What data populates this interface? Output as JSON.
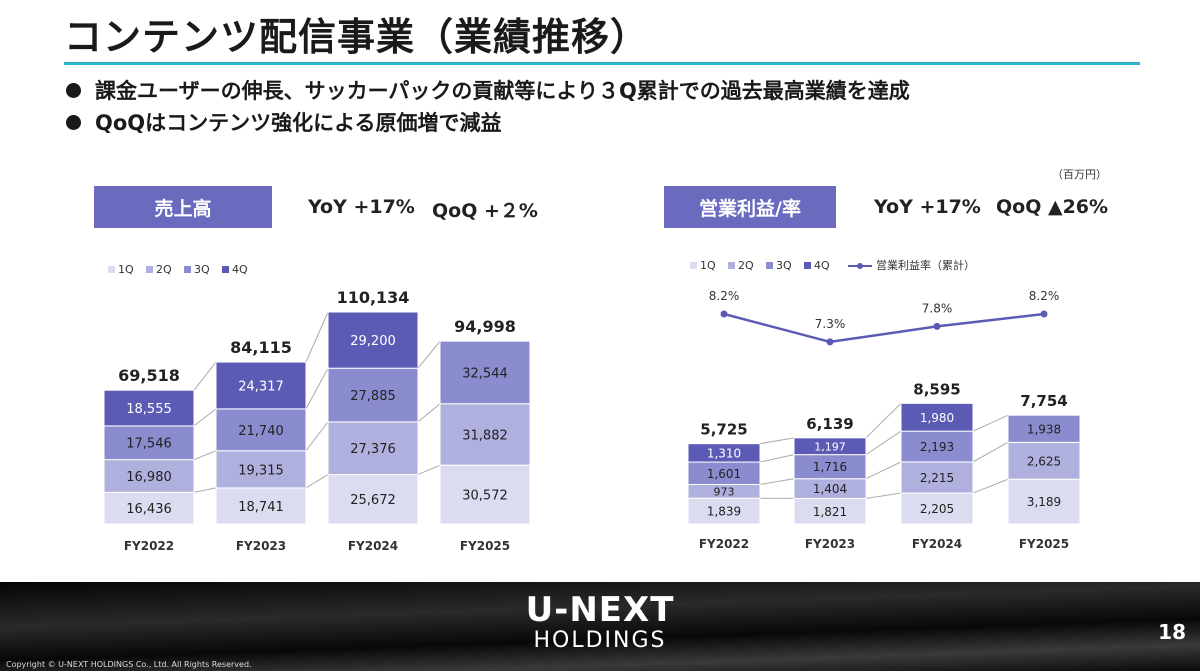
{
  "title": "コンテンツ配信事業（業績推移）",
  "bullets": [
    "課金ユーザーの伸長、サッカーパックの貢献等により３Q累計での過去最高業績を達成",
    "QoQはコンテンツ強化による原価増で減益"
  ],
  "unit_note": "（百万円）",
  "sales": {
    "label": "売上高",
    "yoy": "YoY +17%",
    "qoq": "QoQ +２%"
  },
  "profit": {
    "label": "営業利益/率",
    "yoy": "YoY +17%",
    "qoq": "QoQ ▲26%"
  },
  "colors": {
    "q1": "#dcdcf1",
    "q2": "#b0b0df",
    "q3": "#8b8bd0",
    "q4": "#5b5bb5",
    "rate_line": "#5b5bb5",
    "label_box": "#6a6bbf",
    "rule": "#2bb6c8"
  },
  "chart_data": [
    {
      "type": "bar",
      "stacked": true,
      "categories": [
        "FY2022",
        "FY2023",
        "FY2024",
        "FY2025"
      ],
      "series": [
        {
          "name": "1Q",
          "values": [
            16436,
            18741,
            25672,
            30572
          ]
        },
        {
          "name": "2Q",
          "values": [
            16980,
            19315,
            27376,
            31882
          ]
        },
        {
          "name": "3Q",
          "values": [
            17546,
            21740,
            27885,
            32544
          ]
        },
        {
          "name": "4Q",
          "values": [
            18555,
            24317,
            29200,
            null
          ]
        }
      ],
      "totals": [
        69518,
        84115,
        110134,
        94998
      ],
      "legend_position": "top-left",
      "grid": false
    },
    {
      "type": "bar",
      "stacked": true,
      "categories": [
        "FY2022",
        "FY2023",
        "FY2024",
        "FY2025"
      ],
      "series": [
        {
          "name": "1Q",
          "values": [
            1839,
            1821,
            2205,
            3189
          ]
        },
        {
          "name": "2Q",
          "values": [
            973,
            1404,
            2215,
            2625
          ]
        },
        {
          "name": "3Q",
          "values": [
            1601,
            1716,
            2193,
            1938
          ]
        },
        {
          "name": "4Q",
          "values": [
            1310,
            1197,
            1980,
            null
          ]
        }
      ],
      "totals": [
        5725,
        6139,
        8595,
        7754
      ],
      "line": {
        "name": "営業利益率（累計）",
        "values": [
          8.2,
          7.3,
          7.8,
          8.2
        ],
        "labels": [
          "8.2%",
          "7.3%",
          "7.8%",
          "8.2%"
        ]
      },
      "legend_position": "top-left",
      "grid": false
    }
  ],
  "footer": {
    "logo_main": "U-NEXT",
    "logo_sub": "HOLDINGS",
    "page_number": "18",
    "copyright": "Copyright © U-NEXT HOLDINGS Co., Ltd. All Rights Reserved."
  }
}
